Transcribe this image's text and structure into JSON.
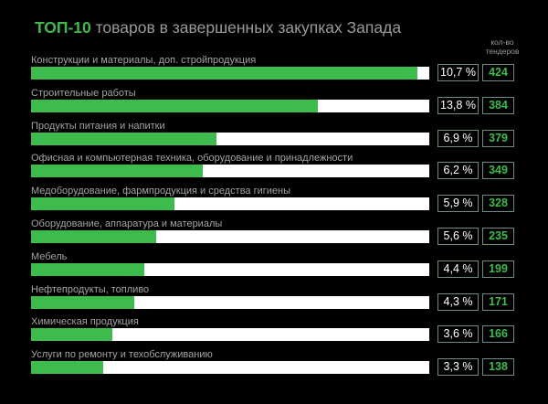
{
  "title": {
    "highlight": "ТОП-10",
    "rest": " товаров в завершенных закупках Запада"
  },
  "column_header": "кол-во тендеров",
  "colors": {
    "background": "#000000",
    "bar_fill": "#3dbb4c",
    "bar_track": "#ffffff",
    "count_text": "#3dbb4c",
    "label_text": "#a3a3a3",
    "box_border": "#6f8a8a"
  },
  "chart_data": {
    "type": "bar",
    "orientation": "horizontal",
    "title": "ТОП-10 товаров в завершенных закупках Запада",
    "categories": [
      "Конструкции и материалы, доп. стройпродукция",
      "Строительные работы",
      "Продукты питания и напитки",
      "Офисная и компьютерная техника, оборудование и принадлежности",
      "Медоборудование, фармпродукция и средства гигиены",
      "Оборудование, аппаратура и материалы",
      "Мебель",
      "Нефтепродукты, топливо",
      "Химическая продукция",
      "Услуги по ремонту и техобслуживанию"
    ],
    "series": [
      {
        "values": [
          10.7,
          13.8,
          6.9,
          6.2,
          5.9,
          5.6,
          4.4,
          4.3,
          3.6,
          3.3
        ],
        "labels": [
          "10,7 %",
          "13,8 %",
          "6,9 %",
          "6,2 %",
          "5,9 %",
          "5,6 %",
          "4,4 %",
          "4,3 %",
          "3,6 %",
          "3,3 %"
        ]
      },
      {
        "name": "кол-во тендеров",
        "values": [
          424,
          384,
          379,
          349,
          328,
          235,
          199,
          171,
          166,
          138
        ]
      }
    ],
    "bar_fill_fractions": [
      0.97,
      0.72,
      0.465,
      0.43,
      0.36,
      0.315,
      0.285,
      0.26,
      0.205,
      0.18
    ],
    "xlim": [
      0,
      1
    ],
    "grid": false,
    "legend": "none"
  }
}
